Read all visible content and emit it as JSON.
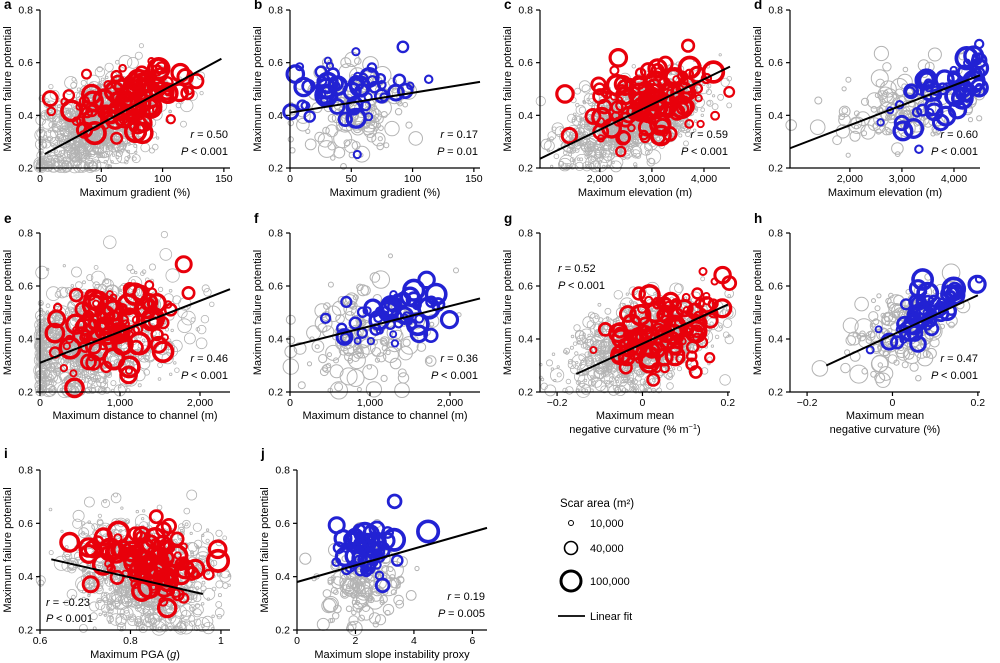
{
  "colors": {
    "red_series": "#e8000b",
    "blue_series": "#2222d3",
    "gray_points": "#b3b3b3",
    "fit_line": "#000000",
    "axis": "#000000",
    "background": "#ffffff"
  },
  "shared": {
    "ylabel": "Maximum failure potential",
    "ylim": [
      0.2,
      0.8
    ],
    "yticks": [
      {
        "v": 0.2,
        "t": "0.2"
      },
      {
        "v": 0.4,
        "t": "0.4"
      },
      {
        "v": 0.6,
        "t": "0.6"
      },
      {
        "v": 0.8,
        "t": "0.8"
      }
    ]
  },
  "legend": {
    "title": "Scar area (m²)",
    "items": [
      {
        "label": "10,000",
        "radius": 2.5,
        "stroke": 1
      },
      {
        "label": "40,000",
        "radius": 6.5,
        "stroke": 1.6
      },
      {
        "label": "100,000",
        "radius": 10,
        "stroke": 3
      }
    ],
    "fit_label": "Linear fit"
  },
  "chart_data": [
    {
      "id": "a",
      "type": "scatter",
      "series": "red",
      "xlabel_lines": [
        [
          {
            "t": "Maximum gradient (%)"
          }
        ]
      ],
      "xlim": [
        0,
        155
      ],
      "xticks": [
        {
          "v": 0,
          "t": "0"
        },
        {
          "v": 50,
          "t": "50"
        },
        {
          "v": 100,
          "t": "100"
        },
        {
          "v": 150,
          "t": "150"
        }
      ],
      "stats": {
        "r": "= 0.50",
        "p": "< 0.001",
        "pos": "br"
      },
      "fit": [
        4,
        0.253,
        148,
        0.615
      ],
      "gray_cloud": {
        "n": 1000,
        "cx": 48,
        "cy": 0.375,
        "sx": 26,
        "sy": 0.09,
        "rho": 0.5
      },
      "main_cloud": {
        "n": 115,
        "cx": 72,
        "cy": 0.46,
        "sx": 25,
        "sy": 0.075,
        "rho": 0.35
      }
    },
    {
      "id": "b",
      "type": "scatter",
      "series": "blue",
      "xlabel_lines": [
        [
          {
            "t": "Maximum gradient (%)"
          }
        ]
      ],
      "xlim": [
        0,
        155
      ],
      "xticks": [
        {
          "v": 0,
          "t": "0"
        },
        {
          "v": 50,
          "t": "50"
        },
        {
          "v": 100,
          "t": "100"
        },
        {
          "v": 150,
          "t": "150"
        }
      ],
      "stats": {
        "r": "= 0.17",
        "p": "= 0.01",
        "pos": "br"
      },
      "fit": [
        0,
        0.41,
        155,
        0.527
      ],
      "gray_cloud": {
        "n": 150,
        "cx": 52,
        "cy": 0.41,
        "sx": 24,
        "sy": 0.085,
        "rho": 0.15
      },
      "main_cloud": {
        "n": 55,
        "cx": 52,
        "cy": 0.5,
        "sx": 25,
        "sy": 0.07,
        "rho": 0.25
      }
    },
    {
      "id": "c",
      "type": "scatter",
      "series": "red",
      "xlabel_lines": [
        [
          {
            "t": "Maximum elevation (m)"
          }
        ]
      ],
      "xlim": [
        850,
        4500
      ],
      "xticks": [
        {
          "v": 2000,
          "t": "2,000"
        },
        {
          "v": 3000,
          "t": "3,000"
        },
        {
          "v": 4000,
          "t": "4,000"
        }
      ],
      "stats": {
        "r": "= 0.59",
        "p": "< 0.001",
        "pos": "br"
      },
      "fit": [
        850,
        0.235,
        4500,
        0.585
      ],
      "gray_cloud": {
        "n": 1000,
        "cx": 2650,
        "cy": 0.38,
        "sx": 650,
        "sy": 0.085,
        "rho": 0.55
      },
      "main_cloud": {
        "n": 115,
        "cx": 2850,
        "cy": 0.45,
        "sx": 600,
        "sy": 0.08,
        "rho": 0.4
      }
    },
    {
      "id": "d",
      "type": "scatter",
      "series": "blue",
      "xlabel_lines": [
        [
          {
            "t": "Maximum elevation (m)"
          }
        ]
      ],
      "xlim": [
        850,
        4500
      ],
      "xticks": [
        {
          "v": 2000,
          "t": "2,000"
        },
        {
          "v": 3000,
          "t": "3,000"
        },
        {
          "v": 4000,
          "t": "4,000"
        }
      ],
      "stats": {
        "r": "= 0.60",
        "p": "< 0.001",
        "pos": "br"
      },
      "fit": [
        850,
        0.275,
        4500,
        0.552
      ],
      "gray_cloud": {
        "n": 150,
        "cx": 3100,
        "cy": 0.44,
        "sx": 750,
        "sy": 0.085,
        "rho": 0.45
      },
      "main_cloud": {
        "n": 55,
        "cx": 3900,
        "cy": 0.5,
        "sx": 480,
        "sy": 0.07,
        "rho": 0.55
      }
    },
    {
      "id": "e",
      "type": "scatter",
      "series": "red",
      "xlabel_lines": [
        [
          {
            "t": "Maximum distance to channel (m)"
          }
        ]
      ],
      "xlim": [
        0,
        2375
      ],
      "xticks": [
        {
          "v": 0,
          "t": "0"
        },
        {
          "v": 1000,
          "t": "1,000"
        },
        {
          "v": 2000,
          "t": "2,000"
        }
      ],
      "stats": {
        "r": "= 0.46",
        "p": "< 0.001",
        "pos": "br"
      },
      "fit": [
        0,
        0.31,
        2375,
        0.588
      ],
      "gray_cloud": {
        "n": 1000,
        "cx": 620,
        "cy": 0.4,
        "sx": 480,
        "sy": 0.1,
        "rho": 0.3
      },
      "main_cloud": {
        "n": 115,
        "cx": 900,
        "cy": 0.45,
        "sx": 380,
        "sy": 0.08,
        "rho": 0.35
      }
    },
    {
      "id": "f",
      "type": "scatter",
      "series": "blue",
      "xlabel_lines": [
        [
          {
            "t": "Maximum distance to channel (m)"
          }
        ]
      ],
      "xlim": [
        0,
        2375
      ],
      "xticks": [
        {
          "v": 0,
          "t": "0"
        },
        {
          "v": 1000,
          "t": "1,000"
        },
        {
          "v": 2000,
          "t": "2,000"
        }
      ],
      "stats": {
        "r": "= 0.36",
        "p": "< 0.001",
        "pos": "br"
      },
      "fit": [
        0,
        0.372,
        2375,
        0.553
      ],
      "gray_cloud": {
        "n": 150,
        "cx": 900,
        "cy": 0.41,
        "sx": 430,
        "sy": 0.09,
        "rho": 0.2
      },
      "main_cloud": {
        "n": 55,
        "cx": 1300,
        "cy": 0.5,
        "sx": 330,
        "sy": 0.065,
        "rho": 0.45
      }
    },
    {
      "id": "g",
      "type": "scatter",
      "series": "red",
      "xlabel_lines": [
        [
          {
            "t": "Maximum mean"
          }
        ],
        [
          {
            "t": "negative curvature (% m"
          },
          {
            "t": "−1",
            "s": "sup"
          },
          {
            "t": ")"
          }
        ]
      ],
      "xlim": [
        -0.24,
        0.205
      ],
      "xticks": [
        {
          "v": -0.2,
          "t": "−0.2"
        },
        {
          "v": 0,
          "t": "0"
        },
        {
          "v": 0.2,
          "t": "0.2"
        }
      ],
      "stats": {
        "r": "= 0.52",
        "p": "< 0.001",
        "pos": "tl"
      },
      "fit": [
        -0.155,
        0.268,
        0.2,
        0.53
      ],
      "gray_cloud": {
        "n": 1000,
        "cx": 0.0,
        "cy": 0.38,
        "sx": 0.08,
        "sy": 0.085,
        "rho": 0.45
      },
      "main_cloud": {
        "n": 115,
        "cx": 0.05,
        "cy": 0.44,
        "sx": 0.07,
        "sy": 0.08,
        "rho": 0.45
      }
    },
    {
      "id": "h",
      "type": "scatter",
      "series": "blue",
      "xlabel_lines": [
        [
          {
            "t": "Maximum mean"
          }
        ],
        [
          {
            "t": "negative curvature (%)"
          }
        ]
      ],
      "xlim": [
        -0.24,
        0.205
      ],
      "xticks": [
        {
          "v": -0.2,
          "t": "−0.2"
        },
        {
          "v": 0,
          "t": "0"
        },
        {
          "v": 0.2,
          "t": "0.2"
        }
      ],
      "stats": {
        "r": "= 0.47",
        "p": "< 0.001",
        "pos": "br"
      },
      "fit": [
        -0.155,
        0.3,
        0.2,
        0.565
      ],
      "gray_cloud": {
        "n": 150,
        "cx": 0.02,
        "cy": 0.43,
        "sx": 0.07,
        "sy": 0.085,
        "rho": 0.4
      },
      "main_cloud": {
        "n": 55,
        "cx": 0.09,
        "cy": 0.5,
        "sx": 0.045,
        "sy": 0.06,
        "rho": 0.5
      }
    },
    {
      "id": "i",
      "type": "scatter",
      "series": "red",
      "xlabel_lines": [
        [
          {
            "t": "Maximum PGA ("
          },
          {
            "t": "g",
            "s": "i"
          },
          {
            "t": ")"
          }
        ]
      ],
      "xlim": [
        0.6,
        1.02
      ],
      "xticks": [
        {
          "v": 0.6,
          "t": "0.6"
        },
        {
          "v": 0.8,
          "t": "0.8"
        },
        {
          "v": 1,
          "t": "1"
        }
      ],
      "stats": {
        "r": "= −0.23",
        "p": "< 0.001",
        "pos": "bl"
      },
      "fit": [
        0.625,
        0.465,
        0.96,
        0.335
      ],
      "gray_cloud": {
        "n": 1000,
        "cx": 0.835,
        "cy": 0.4,
        "sx": 0.075,
        "sy": 0.1,
        "rho": -0.15,
        "qx": 0.012
      },
      "main_cloud": {
        "n": 115,
        "cx": 0.845,
        "cy": 0.44,
        "sx": 0.06,
        "sy": 0.07,
        "rho": -0.25
      }
    },
    {
      "id": "j",
      "type": "scatter",
      "series": "blue",
      "xlabel_lines": [
        [
          {
            "t": "Maximum slope instability proxy"
          }
        ]
      ],
      "xlim": [
        0,
        6.5
      ],
      "xticks": [
        {
          "v": 0,
          "t": "0"
        },
        {
          "v": 2,
          "t": "2"
        },
        {
          "v": 4,
          "t": "4"
        },
        {
          "v": 6,
          "t": "6"
        }
      ],
      "stats": {
        "r": "= 0.19",
        "p": "= 0.005",
        "pos": "br"
      },
      "fit": [
        0,
        0.38,
        6.5,
        0.583
      ],
      "gray_cloud": {
        "n": 150,
        "cx": 2.3,
        "cy": 0.38,
        "sx": 0.7,
        "sy": 0.07,
        "rho": 0.15
      },
      "main_cloud": {
        "n": 55,
        "cx": 2.4,
        "cy": 0.5,
        "sx": 0.6,
        "sy": 0.06,
        "rho": 0.3
      }
    }
  ]
}
